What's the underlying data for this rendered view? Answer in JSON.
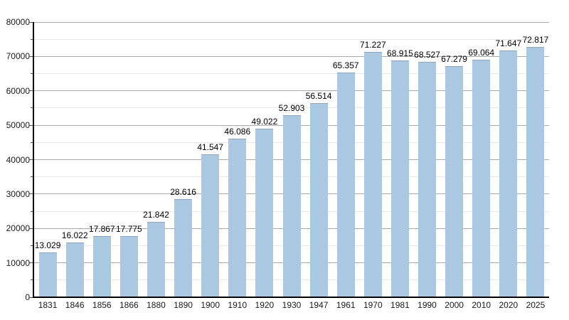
{
  "chart_data": {
    "type": "bar",
    "title": "",
    "xlabel": "",
    "ylabel": "",
    "categories": [
      "1831",
      "1846",
      "1856",
      "1866",
      "1880",
      "1890",
      "1900",
      "1910",
      "1920",
      "1930",
      "1947",
      "1961",
      "1970",
      "1981",
      "1990",
      "2000",
      "2010",
      "2020",
      "2025"
    ],
    "values": [
      13029,
      16022,
      17867,
      17775,
      21842,
      28616,
      41547,
      46086,
      49022,
      52903,
      56514,
      65357,
      71227,
      68915,
      68527,
      67279,
      69064,
      71647,
      72817
    ],
    "value_labels": [
      "13.029",
      "16.022",
      "17.867",
      "17.775",
      "21.842",
      "28.616",
      "41.547",
      "46.086",
      "49.022",
      "52.903",
      "56.514",
      "65.357",
      "71.227",
      "68.915",
      "68.527",
      "67.279",
      "69.064",
      "71.647",
      "72.817"
    ],
    "ylim": [
      0,
      80000
    ],
    "y_major_step": 10000,
    "y_minor_step": 5000,
    "y_ticks": [
      "0",
      "10000",
      "20000",
      "30000",
      "40000",
      "50000",
      "60000",
      "70000",
      "80000"
    ],
    "grid": "on",
    "legend": "none",
    "colors": {
      "bar_fill": "#abc8e2",
      "bar_top_border": "#8fa6ba",
      "major_grid": "#a8a8a8",
      "minor_grid": "#e7e7e7",
      "axis": "#000000",
      "background": "#ffffff",
      "label_text": "#000000"
    }
  }
}
